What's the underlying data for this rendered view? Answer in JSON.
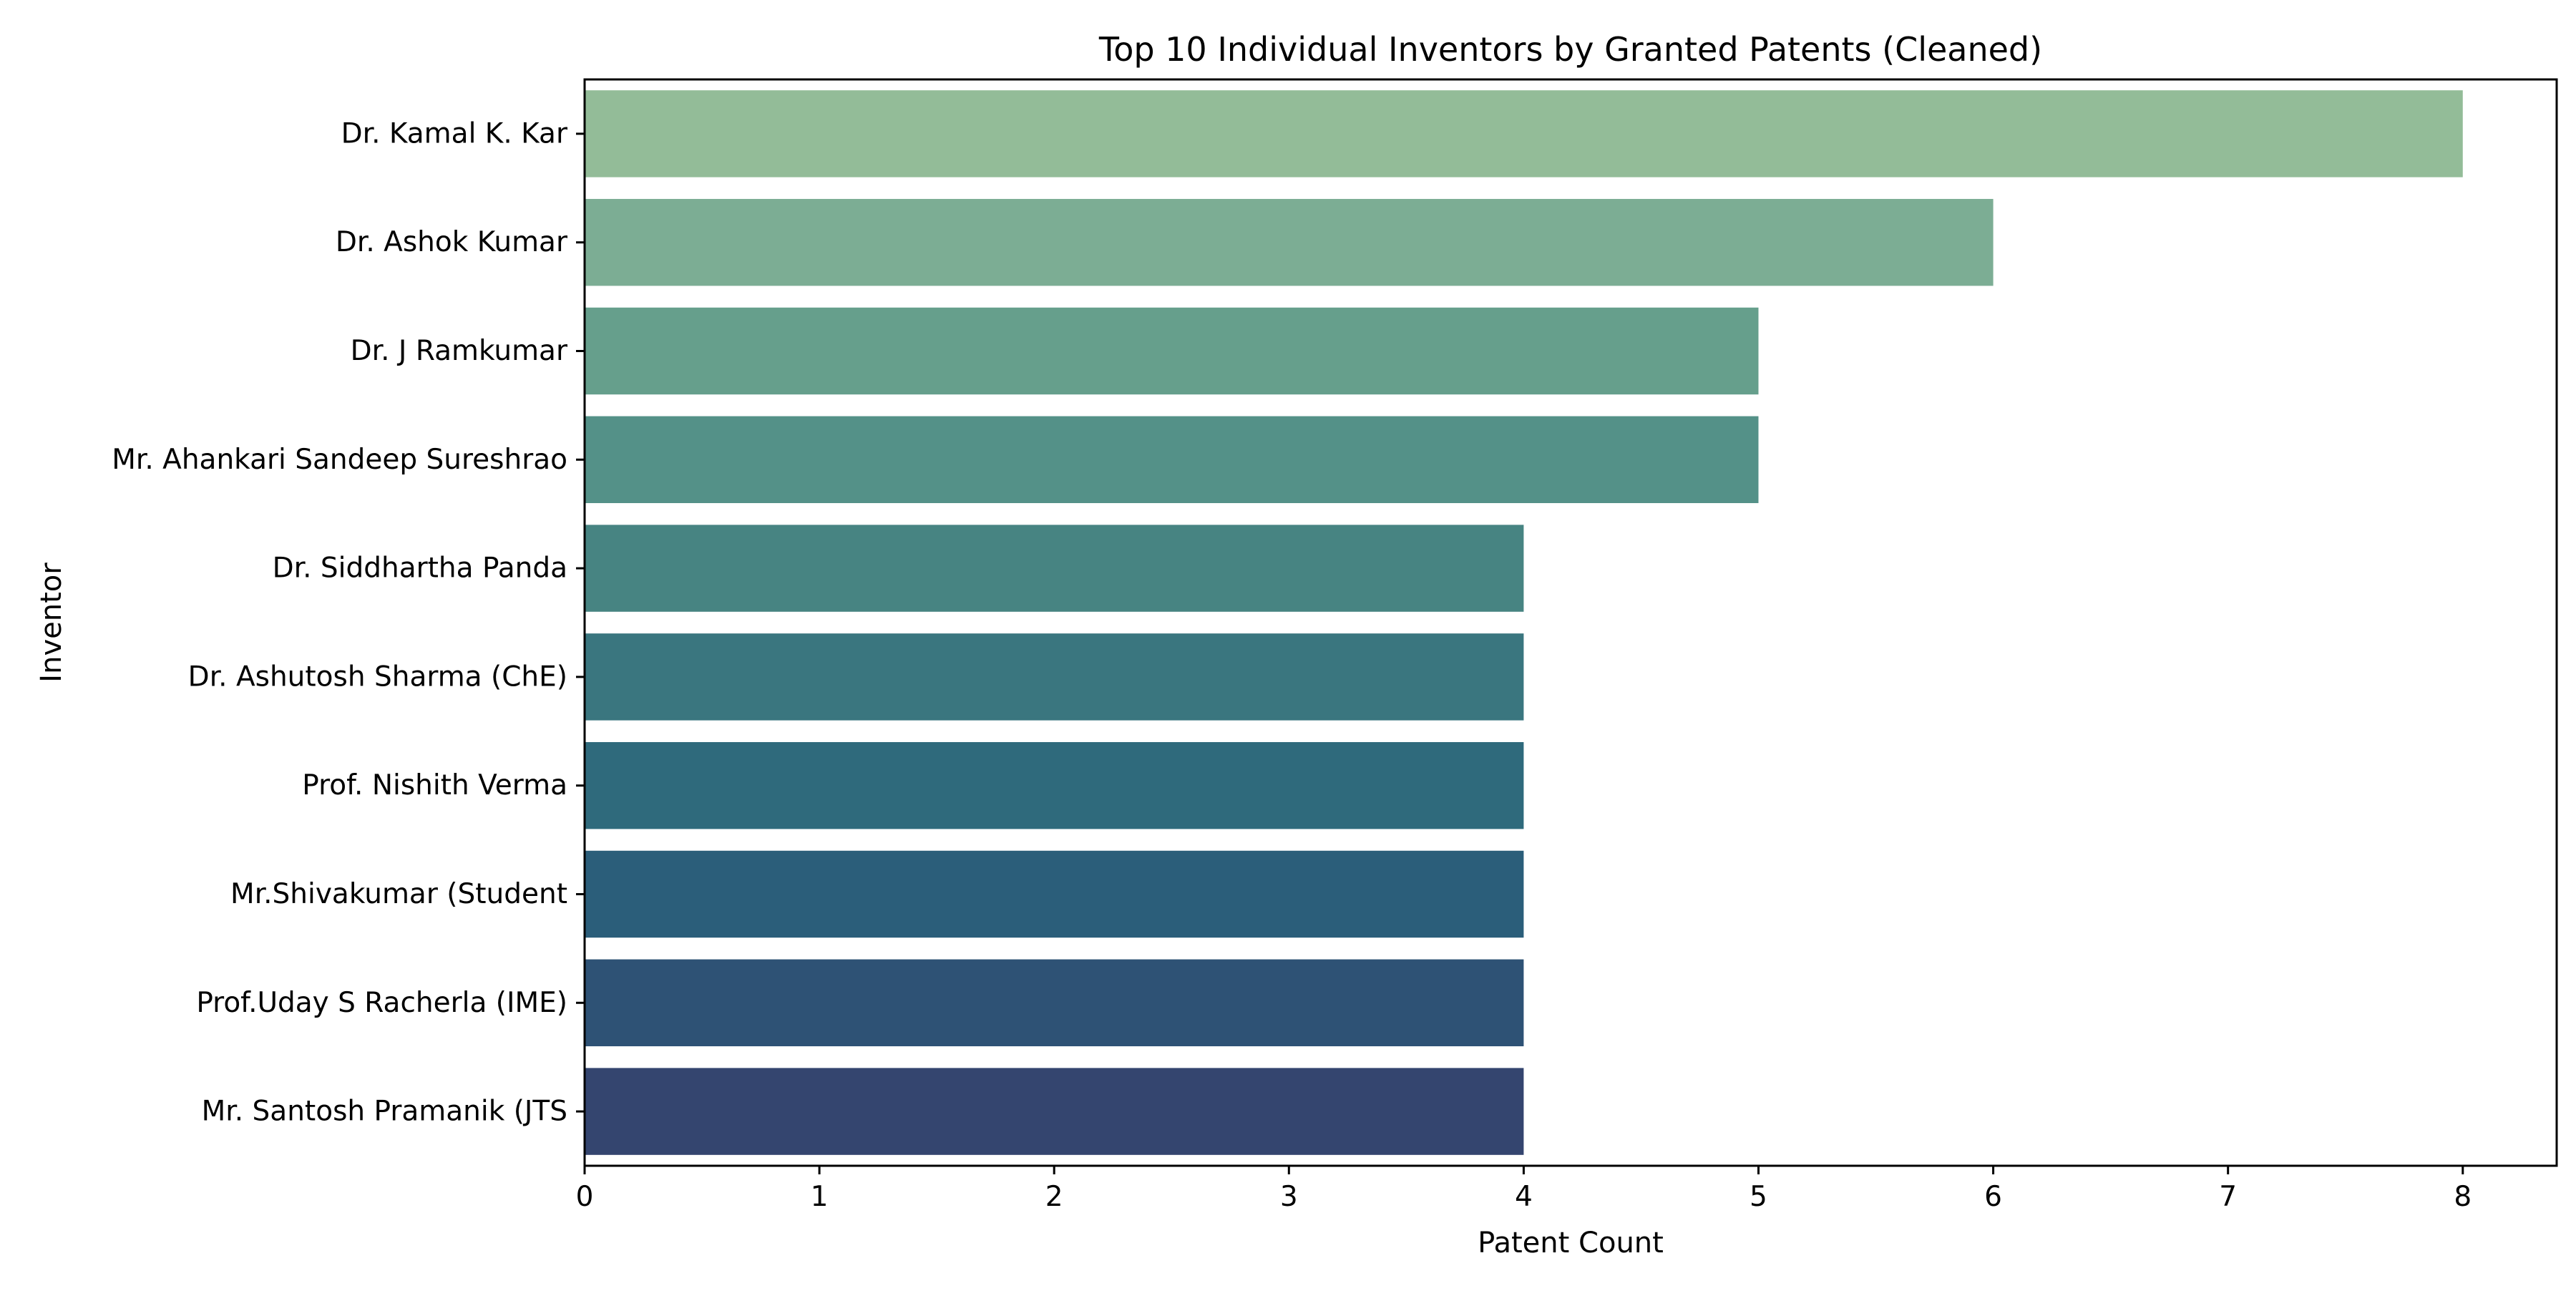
{
  "chart_data": {
    "type": "bar",
    "orientation": "horizontal",
    "title": "Top 10 Individual Inventors by Granted Patents (Cleaned)",
    "xlabel": "Patent Count",
    "ylabel": "Inventor",
    "xlim": [
      0,
      8.4
    ],
    "xticks": [
      "0",
      "1",
      "2",
      "3",
      "4",
      "5",
      "6",
      "7",
      "8"
    ],
    "grid": false,
    "categories": [
      "Dr. Kamal K. Kar",
      "Dr. Ashok Kumar",
      "Dr. J Ramkumar",
      "Mr. Ahankari Sandeep Sureshrao",
      "Dr. Siddhartha Panda",
      "Dr. Ashutosh Sharma (ChE)",
      "Prof. Nishith Verma",
      "Mr.Shivakumar (Student",
      "Prof.Uday S Racherla (IME)",
      "Mr. Santosh Pramanik (JTS"
    ],
    "values": [
      8,
      6,
      5,
      5,
      4,
      4,
      4,
      4,
      4,
      4
    ],
    "colors": [
      "#93bc98",
      "#7cad94",
      "#669f8c",
      "#549188",
      "#478482",
      "#3a767f",
      "#2f6a7c",
      "#2b5e7a",
      "#2e5275",
      "#34456f"
    ]
  }
}
